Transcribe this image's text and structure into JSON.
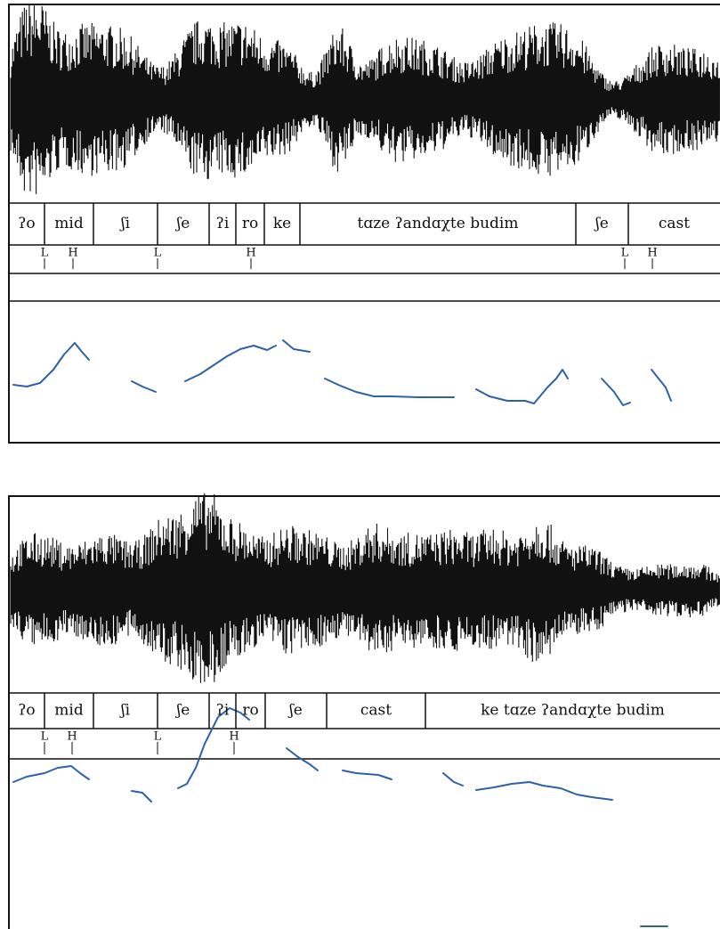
{
  "panels": [
    {
      "syllables": [
        "ʔo",
        "mid",
        "ʃi",
        "ʃe",
        "ʔi",
        "ro",
        "ke",
        "tɑze ʔandɑχte budim",
        "ʃe",
        "cast"
      ],
      "tones": [
        "L",
        "H",
        "L",
        "H",
        "L",
        "H"
      ]
    },
    {
      "syllables": [
        "ʔo",
        "mid",
        "ʃi",
        "ʃe",
        "ʔi",
        "ro",
        "ʃe",
        "cast",
        "ke tɑze ʔandɑχte budim"
      ],
      "tones": [
        "L",
        "H",
        "L",
        "H"
      ]
    }
  ]
}
